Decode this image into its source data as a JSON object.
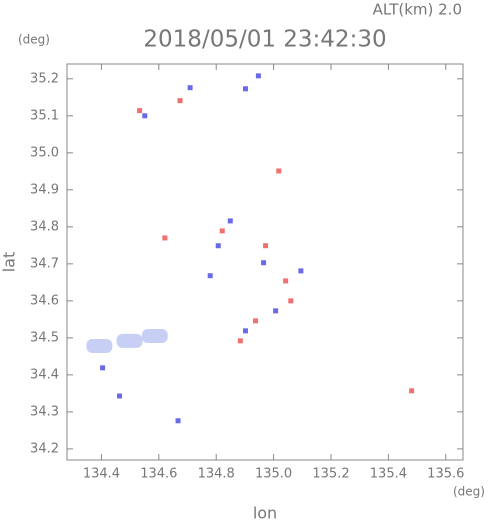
{
  "chart_data": {
    "type": "scatter",
    "title": "2018/05/01 23:42:30",
    "subtitle": "ALT(km) 2.0",
    "x_label": "lon",
    "y_label": "lat",
    "x_unit": "(deg)",
    "y_unit": "(deg)",
    "xlim": [
      134.28,
      135.66
    ],
    "ylim": [
      34.17,
      35.24
    ],
    "xticks": [
      134.4,
      134.6,
      134.8,
      {
        "value": 135,
        "label": "135.0"
      },
      135.2,
      135.4,
      135.6
    ],
    "yticks": [
      34.2,
      34.3,
      34.4,
      34.5,
      34.6,
      34.7,
      34.8,
      34.9,
      {
        "value": 35,
        "label": "35.0"
      },
      35.1,
      35.2
    ],
    "grid": false,
    "series": [
      {
        "color": "#c8cff5",
        "x": [
          134.393,
          134.498,
          134.586
        ],
        "values": [
          34.478,
          34.492,
          34.505
        ]
      },
      {
        "color": "#6a6ae8",
        "x": [
          134.709,
          134.947,
          134.902,
          134.807,
          134.779,
          134.902,
          135.095,
          134.667,
          134.463,
          134.404,
          134.965,
          134.849,
          134.551,
          135.007
        ],
        "values": [
          35.176,
          35.208,
          35.173,
          34.749,
          34.668,
          34.519,
          34.681,
          34.276,
          34.343,
          34.419,
          34.703,
          34.816,
          35.1,
          34.573
        ]
      },
      {
        "color": "#f07070",
        "x": [
          135.481,
          134.674,
          134.621,
          135.018,
          134.884,
          134.972,
          135.06,
          134.821,
          135.042,
          134.937,
          134.533
        ],
        "values": [
          34.357,
          35.141,
          34.77,
          34.951,
          34.492,
          34.749,
          34.6,
          34.789,
          34.654,
          34.546,
          35.114
        ]
      }
    ]
  }
}
